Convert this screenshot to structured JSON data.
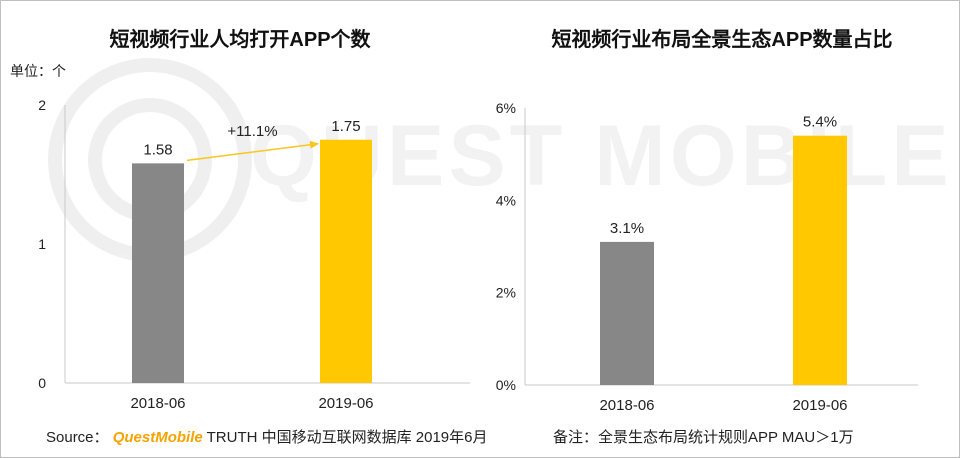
{
  "watermark_text": "QUEST MOBILE",
  "footer": {
    "source_label": "Source：",
    "brand": "QuestMobile",
    "source_rest": "TRUTH 中国移动互联网数据库 2019年6月",
    "note": "备注：全景生态布局统计规则APP MAU＞1万"
  },
  "colors": {
    "gray": "#878787",
    "yellow": "#FFC800",
    "arrow": "#F8C71E"
  },
  "chart_data": [
    {
      "type": "bar",
      "title": "短视频行业人均打开APP个数",
      "unit": "单位：个",
      "categories": [
        "2018-06",
        "2019-06"
      ],
      "values": [
        1.58,
        1.75
      ],
      "value_labels": [
        "1.58",
        "1.75"
      ],
      "bar_colors": [
        "#878787",
        "#FFC800"
      ],
      "ylim": [
        0,
        2
      ],
      "yticks": [
        0,
        1,
        2
      ],
      "ytick_labels": [
        "0",
        "1",
        "2"
      ],
      "annotation": "+11.1%"
    },
    {
      "type": "bar",
      "title": "短视频行业布局全景生态APP数量占比",
      "categories": [
        "2018-06",
        "2019-06"
      ],
      "values": [
        3.1,
        5.4
      ],
      "value_labels": [
        "3.1%",
        "5.4%"
      ],
      "bar_colors": [
        "#878787",
        "#FFC800"
      ],
      "ylim": [
        0,
        6
      ],
      "yticks": [
        0,
        2,
        4,
        6
      ],
      "ytick_labels": [
        "0%",
        "2%",
        "4%",
        "6%"
      ]
    }
  ]
}
